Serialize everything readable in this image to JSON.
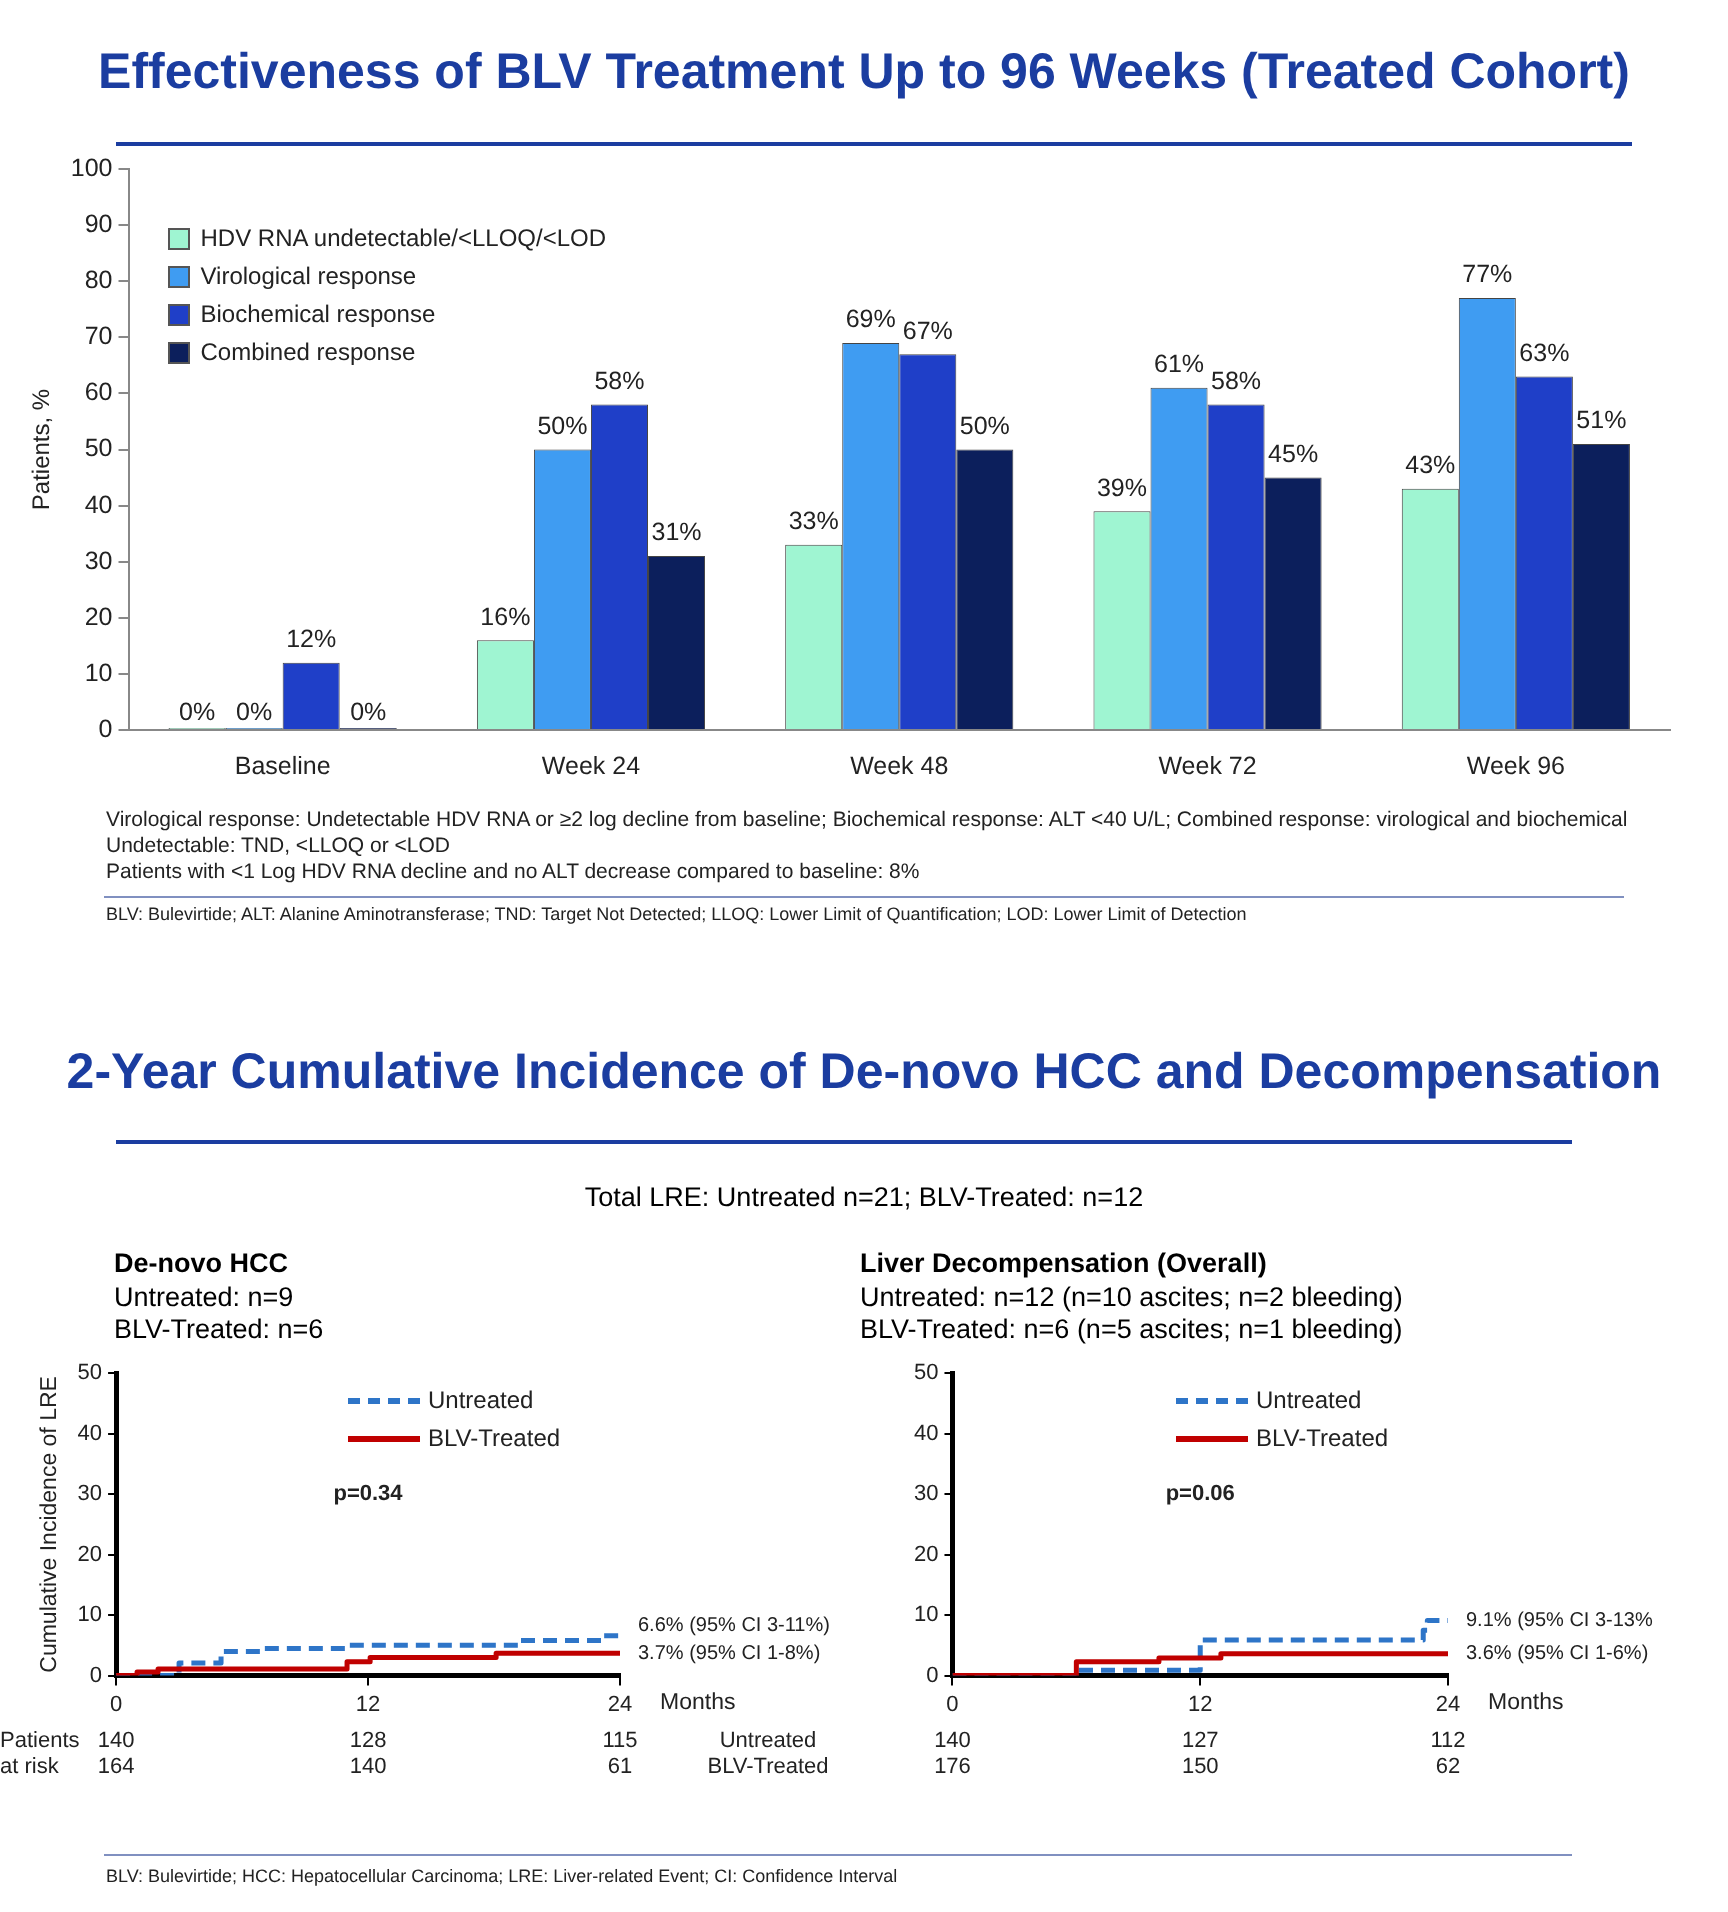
{
  "chart_data": [
    {
      "type": "bar",
      "title": "Effectiveness of BLV Treatment Up to 96 Weeks (Treated Cohort)",
      "ylabel": "Patients, %",
      "categories": [
        "Baseline",
        "Week 24",
        "Week 48",
        "Week 72",
        "Week 96"
      ],
      "series": [
        {
          "name": "HDV RNA undetectable/<LLOQ/<LOD",
          "color": "#9ff5d2",
          "values": [
            0,
            16,
            33,
            39,
            43
          ],
          "value_labels": [
            "0%",
            "16%",
            "33%",
            "39%",
            "43%"
          ]
        },
        {
          "name": "Virological response",
          "color": "#3f9cf2",
          "values": [
            0,
            50,
            69,
            61,
            77
          ],
          "value_labels": [
            "0%",
            "50%",
            "69%",
            "61%",
            "77%"
          ]
        },
        {
          "name": "Biochemical response",
          "color": "#1f3fc8",
          "values": [
            12,
            58,
            67,
            58,
            63
          ],
          "value_labels": [
            "12%",
            "58%",
            "67%",
            "58%",
            "63%"
          ]
        },
        {
          "name": "Combined response",
          "color": "#0c1f5c",
          "values": [
            0,
            31,
            50,
            45,
            51
          ],
          "value_labels": [
            "0%",
            "31%",
            "50%",
            "45%",
            "51%"
          ]
        }
      ],
      "ylim": [
        0,
        100
      ],
      "yticks": [
        0,
        10,
        20,
        30,
        40,
        50,
        60,
        70,
        80,
        90,
        100
      ],
      "grid": false,
      "legend": "top left",
      "annotations": [
        "Virological response: Undetectable HDV RNA or ≥2 log decline from baseline; Biochemical response: ALT <40 U/L; Combined response: virological and biochemical",
        "Undetectable: TND, <LLOQ or <LOD",
        "Patients with <1 Log HDV RNA decline and no ALT decrease compared to baseline: 8%",
        "BLV: Bulevirtide; ALT: Alanine Aminotransferase; TND: Target Not Detected; LLOQ: Lower Limit of Quantification; LOD: Lower Limit of Detection"
      ]
    },
    {
      "type": "other",
      "title": "2-Year Cumulative Incidence of De-novo HCC and Decompensation",
      "subtitle": "Total LRE: Untreated n=21; BLV-Treated: n=12",
      "annotations": [
        "BLV: Bulevirtide; HCC: Hepatocellular Carcinoma; LRE: Liver-related Event; CI: Confidence Interval"
      ]
    },
    {
      "type": "step",
      "title": "De-novo HCC",
      "subtitle": "Untreated: n=9\nBLV-Treated: n=6",
      "ylabel": "Cumulative Incidence of LRE",
      "xlabel": "Months",
      "series": [
        {
          "name": "Untreated",
          "color": "#2e75c8",
          "line_style": "dashed",
          "x": [
            0,
            3,
            5,
            7,
            11,
            19.2,
            23.2,
            24
          ],
          "values": [
            0,
            2.1,
            4.0,
            4.5,
            5.0,
            5.8,
            6.6,
            6.6
          ]
        },
        {
          "name": "BLV-Treated",
          "color": "#c00000",
          "line_style": "solid",
          "x": [
            0,
            1,
            2,
            11,
            12.1,
            18.1,
            24
          ],
          "values": [
            0,
            0.6,
            1.1,
            2.3,
            3.0,
            3.7,
            3.7
          ]
        }
      ],
      "xlim": [
        0,
        24
      ],
      "xticks": [
        0,
        12,
        24
      ],
      "ylim": [
        0,
        50
      ],
      "yticks": [
        0,
        10,
        20,
        30,
        40,
        50
      ],
      "grid": false,
      "legend": "top right",
      "annotations": [
        "p=0.34",
        "6.6% (95% CI 3-11%)",
        "3.7% (95% CI 1-8%)",
        "Patients",
        "at risk",
        "Untreated",
        "BLV-Treated",
        "140",
        "128",
        "115",
        "164",
        "140",
        "61"
      ]
    },
    {
      "type": "step",
      "title": "Liver Decompensation (Overall)",
      "subtitle": "Untreated: n=12 (n=10 ascites; n=2 bleeding)\nBLV-Treated: n=6 (n=5 ascites; n=1 bleeding)",
      "xlabel": "Months",
      "series": [
        {
          "name": "Untreated",
          "color": "#2e75c8",
          "line_style": "dashed",
          "x": [
            0,
            6,
            12,
            22.8,
            23,
            24
          ],
          "values": [
            0,
            0.9,
            5.9,
            7.5,
            9.1,
            9.1
          ]
        },
        {
          "name": "BLV-Treated",
          "color": "#c00000",
          "line_style": "solid",
          "x": [
            0,
            6,
            10,
            13,
            24
          ],
          "values": [
            0,
            2.3,
            2.9,
            3.6,
            3.6
          ]
        }
      ],
      "xlim": [
        0,
        24
      ],
      "xticks": [
        0,
        12,
        24
      ],
      "ylim": [
        0,
        50
      ],
      "yticks": [
        0,
        10,
        20,
        30,
        40,
        50
      ],
      "grid": false,
      "legend": "top right",
      "annotations": [
        "p=0.06",
        "9.1% (95% CI 3-13%",
        "3.6% (95% CI 1-6%)",
        "140",
        "127",
        "112",
        "176",
        "150",
        "62"
      ]
    }
  ]
}
